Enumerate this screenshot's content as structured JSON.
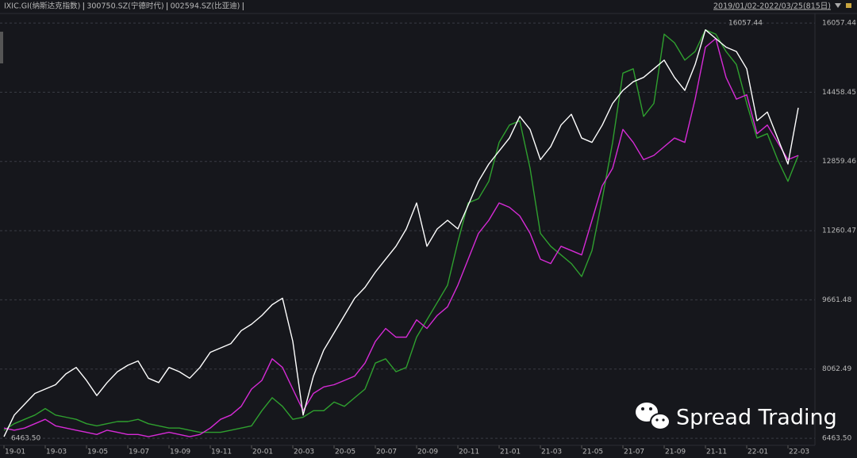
{
  "chart_data": {
    "type": "line",
    "title": "IXIC.GI(纳斯达克指数)",
    "date_range": "2019/01/02-2022/03/25(815日)",
    "watermark": "Spread Trading",
    "annotations": [
      "16057.44",
      "6463.50"
    ],
    "categories": [
      "19-01",
      null,
      null,
      null,
      "19-03",
      null,
      null,
      null,
      "19-05",
      null,
      null,
      null,
      "19-07",
      null,
      null,
      null,
      "19-09",
      null,
      null,
      null,
      "19-11",
      null,
      null,
      null,
      "20-01",
      null,
      null,
      null,
      "20-03",
      null,
      null,
      null,
      "20-05",
      null,
      null,
      null,
      "20-07",
      null,
      null,
      null,
      "20-09",
      null,
      null,
      null,
      "20-11",
      null,
      null,
      null,
      "21-01",
      null,
      null,
      null,
      "21-03",
      null,
      null,
      null,
      "21-05",
      null,
      null,
      null,
      "21-07",
      null,
      null,
      null,
      "21-09",
      null,
      null,
      null,
      "21-11",
      null,
      null,
      null,
      "22-01",
      null,
      null,
      null,
      "22-03",
      null
    ],
    "series": [
      {
        "name": "IXIC.GI(纳斯达克指数)",
        "color": "#ffffff",
        "values": [
          6500,
          7000,
          7250,
          7500,
          7600,
          7700,
          7950,
          8100,
          7800,
          7450,
          7750,
          8000,
          8150,
          8250,
          7850,
          7750,
          8100,
          8000,
          7850,
          8100,
          8450,
          8550,
          8650,
          8950,
          9100,
          9300,
          9550,
          9700,
          8700,
          7000,
          7900,
          8500,
          8900,
          9300,
          9700,
          9950,
          10300,
          10600,
          10900,
          11300,
          11900,
          10900,
          11300,
          11500,
          11300,
          11850,
          12400,
          12800,
          13100,
          13400,
          13900,
          13600,
          12900,
          13200,
          13700,
          13950,
          13400,
          13300,
          13700,
          14200,
          14500,
          14700,
          14800,
          15000,
          15200,
          14800,
          14500,
          15100,
          15900,
          15700,
          15500,
          15400,
          15000,
          13800,
          14000,
          13400,
          12800,
          14100
        ]
      },
      {
        "name": "300750.SZ(宁德时代)",
        "color": "#d62bd6",
        "values": [
          6700,
          6650,
          6700,
          6800,
          6900,
          6750,
          6700,
          6650,
          6600,
          6550,
          6650,
          6600,
          6550,
          6550,
          6500,
          6550,
          6600,
          6550,
          6500,
          6550,
          6700,
          6900,
          7000,
          7200,
          7600,
          7800,
          8300,
          8100,
          7600,
          7100,
          7500,
          7650,
          7700,
          7800,
          7900,
          8200,
          8700,
          9000,
          8800,
          8800,
          9200,
          9000,
          9300,
          9500,
          10000,
          10600,
          11200,
          11500,
          11900,
          11800,
          11600,
          11200,
          10600,
          10500,
          10900,
          10800,
          10700,
          11500,
          12300,
          12700,
          13600,
          13300,
          12900,
          13000,
          13200,
          13400,
          13300,
          14300,
          15500,
          15700,
          14800,
          14300,
          14400,
          13500,
          13700,
          13300,
          12900,
          13000
        ]
      },
      {
        "name": "002594.SZ(比亚迪)",
        "color": "#2fa02f",
        "values": [
          6650,
          6800,
          6900,
          7000,
          7150,
          7000,
          6950,
          6900,
          6800,
          6750,
          6800,
          6850,
          6850,
          6900,
          6800,
          6750,
          6700,
          6700,
          6650,
          6600,
          6600,
          6600,
          6650,
          6700,
          6750,
          7100,
          7400,
          7200,
          6900,
          6950,
          7100,
          7100,
          7300,
          7200,
          7400,
          7600,
          8200,
          8300,
          8000,
          8100,
          8800,
          9200,
          9600,
          10000,
          11000,
          11900,
          12000,
          12400,
          13300,
          13700,
          13800,
          12700,
          11200,
          10900,
          10700,
          10500,
          10200,
          10800,
          12000,
          13300,
          14900,
          15000,
          13900,
          14200,
          15800,
          15600,
          15200,
          15400,
          15900,
          15800,
          15400,
          15100,
          14200,
          13400,
          13500,
          12900,
          12400,
          13000
        ]
      }
    ],
    "ylim": [
      6300,
      16260
    ],
    "yticks": [
      {
        "value": 6463.5,
        "label": "6463.50"
      },
      8062.49,
      9661.48,
      11260.47,
      12859.46,
      14458.45,
      16057.44
    ],
    "grid": true
  }
}
